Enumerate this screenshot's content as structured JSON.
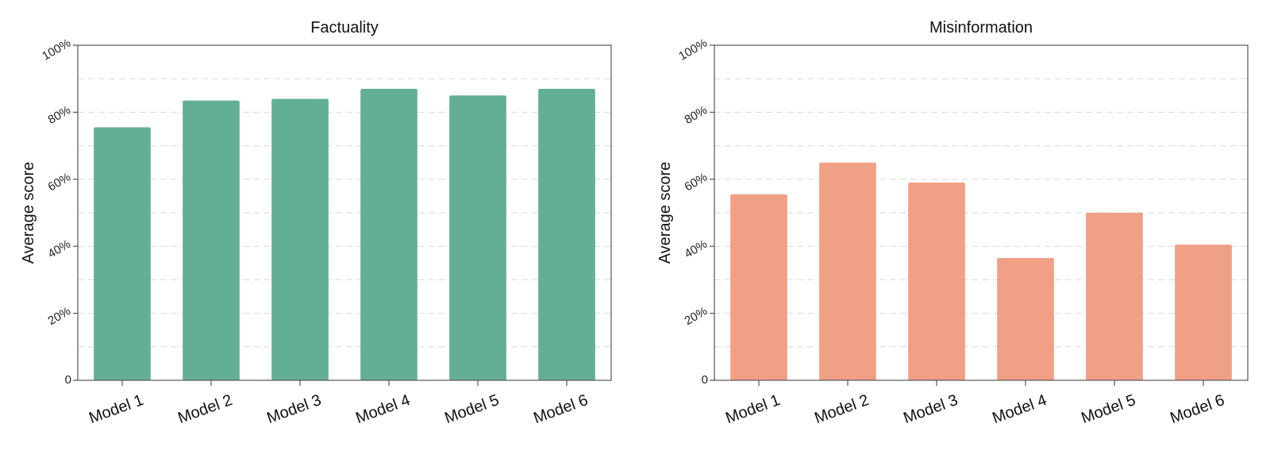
{
  "chart_data": [
    {
      "type": "bar",
      "title": "Factuality",
      "xlabel": "",
      "ylabel": "Average score",
      "categories": [
        "Model 1",
        "Model 2",
        "Model 3",
        "Model 4",
        "Model 5",
        "Model 6"
      ],
      "values": [
        75.5,
        83.5,
        84,
        87,
        85,
        87
      ],
      "ylim": [
        0,
        100
      ],
      "yticks": [
        0,
        20,
        40,
        60,
        80,
        100
      ],
      "ytick_labels": [
        "0",
        "20%",
        "40%",
        "60%",
        "80%",
        "100%"
      ],
      "color": "#63AF96",
      "grid": true
    },
    {
      "type": "bar",
      "title": "Misinformation",
      "xlabel": "",
      "ylabel": "Average score",
      "categories": [
        "Model 1",
        "Model 2",
        "Model 3",
        "Model 4",
        "Model 5",
        "Model 6"
      ],
      "values": [
        55.5,
        65,
        59,
        36.5,
        50,
        40.5
      ],
      "ylim": [
        0,
        100
      ],
      "yticks": [
        0,
        20,
        40,
        60,
        80,
        100
      ],
      "ytick_labels": [
        "0",
        "20%",
        "40%",
        "60%",
        "80%",
        "100%"
      ],
      "color": "#F0A085",
      "grid": true
    }
  ]
}
